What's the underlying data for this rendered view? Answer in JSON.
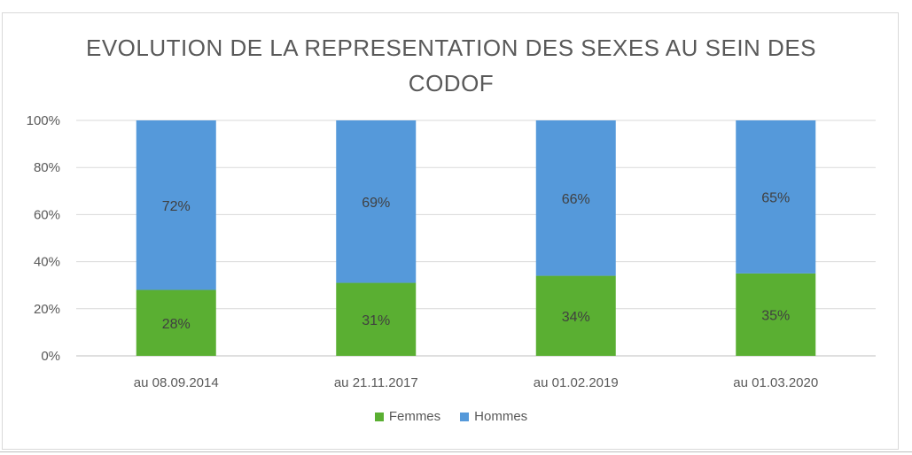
{
  "chart_data": {
    "type": "bar",
    "stacked": true,
    "percent": true,
    "title": "EVOLUTION DE LA  REPRESENTATION DES SEXES AU SEIN DES\nCODOF",
    "categories": [
      "au 08.09.2014",
      "au 21.11.2017",
      "au 01.02.2019",
      "au 01.03.2020"
    ],
    "series": [
      {
        "name": "Femmes",
        "color": "#5aaf32",
        "values": [
          28,
          31,
          34,
          35
        ],
        "labels": [
          "28%",
          "31%",
          "34%",
          "35%"
        ]
      },
      {
        "name": "Hommes",
        "color": "#5599da",
        "values": [
          72,
          69,
          66,
          65
        ],
        "labels": [
          "72%",
          "69%",
          "66%",
          "65%"
        ]
      }
    ],
    "ylim": [
      0,
      100
    ],
    "yticks": [
      0,
      20,
      40,
      60,
      80,
      100
    ],
    "ytick_labels": [
      "0%",
      "20%",
      "40%",
      "60%",
      "80%",
      "100%"
    ],
    "grid": true,
    "legend_position": "bottom"
  }
}
